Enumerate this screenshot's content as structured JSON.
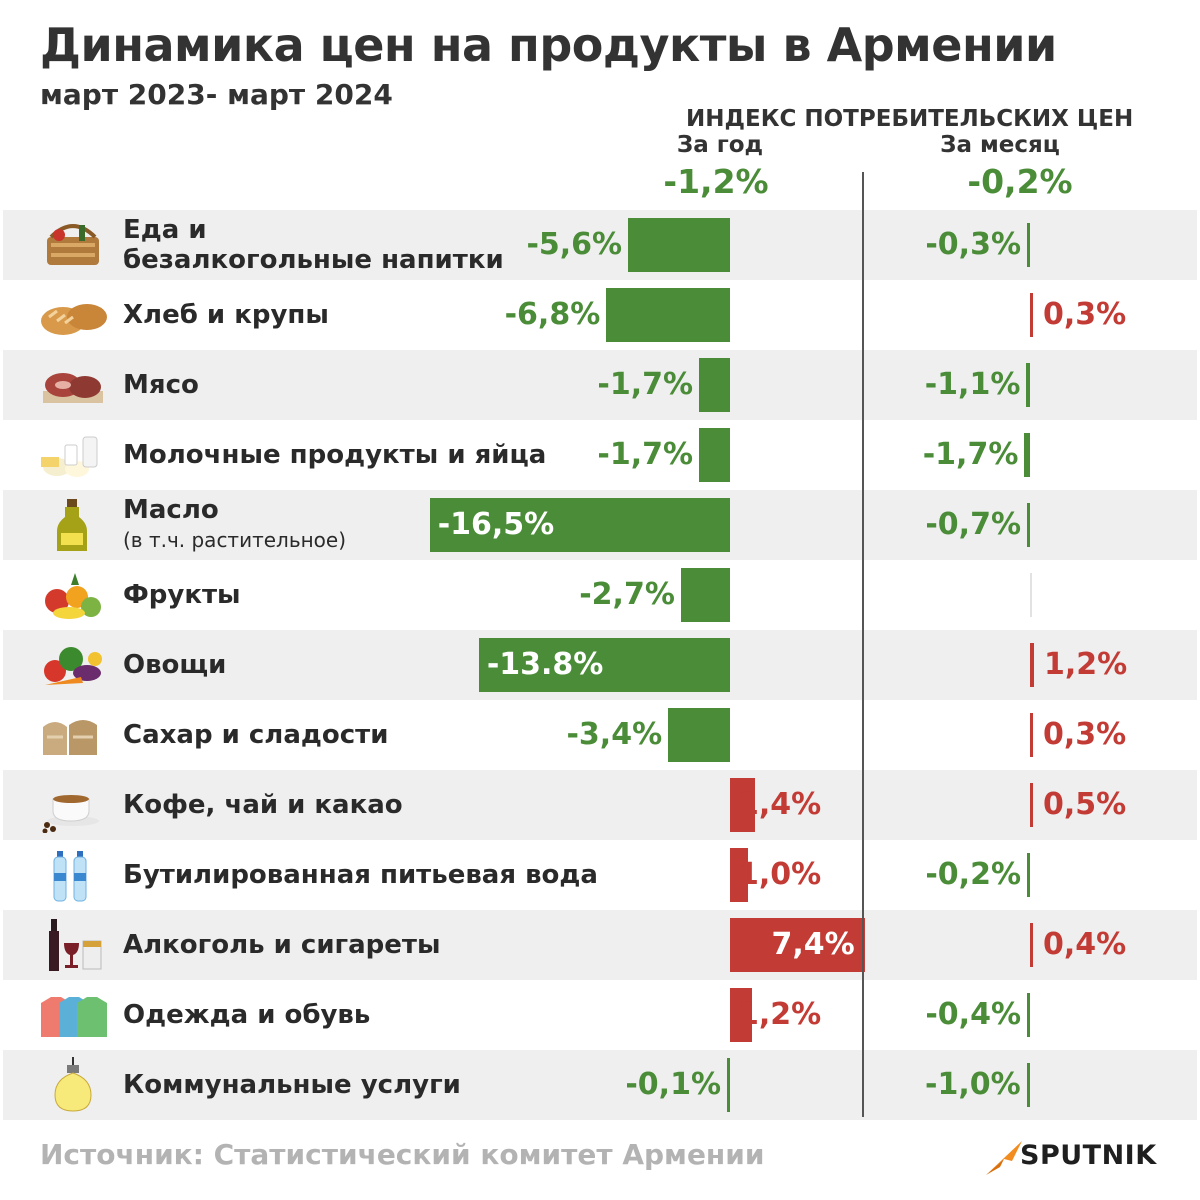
{
  "title": "Динамика цен на продукты в Армении",
  "subtitle": "март 2023- март 2024",
  "cpi_heading": "ИНДЕКС ПОТРЕБИТЕЛЬСКИХ ЦЕН",
  "col_year_label": "За год",
  "col_month_label": "За месяц",
  "total_year": "-1,2%",
  "total_month": "-0,2%",
  "footer": {
    "source": "Источник: Статистический комитет Армении",
    "logo_text": "SPUTNIK"
  },
  "colors": {
    "negative": "#4a8c37",
    "positive": "#c33b35",
    "row_shade": "#efefef"
  },
  "chart_data": {
    "type": "bar",
    "orientation": "horizontal",
    "categories": [
      "Еда и безалкогольные напитки",
      "Хлеб и крупы",
      "Мясо",
      "Молочные продукты и яйца",
      "Масло (в т.ч. растительное)",
      "Фрукты",
      "Овощи",
      "Сахар и сладости",
      "Кофе, чай и какао",
      "Бутилированная питьевая вода",
      "Алкоголь и сигареты",
      "Одежда и обувь",
      "Коммунальные услуги"
    ],
    "series": [
      {
        "name": "За год",
        "values": [
          -5.6,
          -6.8,
          -1.7,
          -1.7,
          -16.5,
          -2.7,
          -13.8,
          -3.4,
          1.4,
          1.0,
          7.4,
          1.2,
          -0.1
        ],
        "labels": [
          "-5,6%",
          "-6,8%",
          "-1,7%",
          "-1,7%",
          "-16,5%",
          "-2,7%",
          "-13.8%",
          "-3,4%",
          "1,4%",
          "1,0%",
          "7,4%",
          "1,2%",
          "-0,1%"
        ]
      },
      {
        "name": "За месяц",
        "values": [
          -0.3,
          0.3,
          -1.1,
          -1.7,
          -0.7,
          0.0,
          1.2,
          0.3,
          0.5,
          -0.2,
          0.4,
          -0.4,
          -1.0
        ],
        "labels": [
          "-0,3%",
          "0,3%",
          "-1,1%",
          "-1,7%",
          "-0,7%",
          "",
          "1,2%",
          "0,3%",
          "0,5%",
          "-0,2%",
          "0,4%",
          "-0,4%",
          "-1,0%"
        ]
      }
    ]
  },
  "rows": [
    {
      "label": "Еда и",
      "label2": "безалкогольные напитки",
      "sub": "",
      "icon": "picnic-basket-icon"
    },
    {
      "label": "Хлеб и крупы",
      "label2": "",
      "sub": "",
      "icon": "bread-icon"
    },
    {
      "label": "Мясо",
      "label2": "",
      "sub": "",
      "icon": "meat-icon"
    },
    {
      "label": "Молочные продукты и яйца",
      "label2": "",
      "sub": "",
      "icon": "dairy-eggs-icon"
    },
    {
      "label": "Масло",
      "label2": "",
      "sub": "(в т.ч. растительное)",
      "icon": "oil-bottle-icon"
    },
    {
      "label": "Фрукты",
      "label2": "",
      "sub": "",
      "icon": "fruits-icon"
    },
    {
      "label": "Овощи",
      "label2": "",
      "sub": "",
      "icon": "vegetables-icon"
    },
    {
      "label": "Сахар и сладости",
      "label2": "",
      "sub": "",
      "icon": "sugar-sacks-icon"
    },
    {
      "label": "Кофе, чай и какао",
      "label2": "",
      "sub": "",
      "icon": "coffee-cup-icon"
    },
    {
      "label": "Бутилированная питьевая вода",
      "label2": "",
      "sub": "",
      "icon": "water-bottles-icon"
    },
    {
      "label": "Алкоголь и сигареты",
      "label2": "",
      "sub": "",
      "icon": "wine-cigarettes-icon"
    },
    {
      "label": "Одежда и обувь",
      "label2": "",
      "sub": "",
      "icon": "shirts-icon"
    },
    {
      "label": "Коммунальные услуги",
      "label2": "",
      "sub": "",
      "icon": "light-bulb-icon"
    }
  ]
}
